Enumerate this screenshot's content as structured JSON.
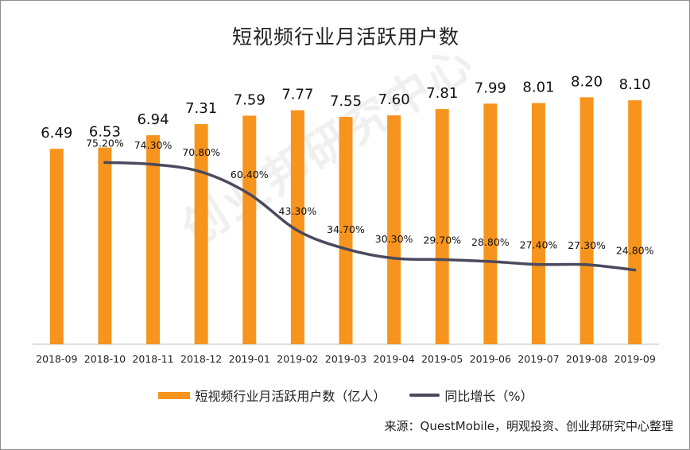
{
  "chart_data": {
    "type": "bar",
    "title": "短视频行业月活跃用户数",
    "categories": [
      "2018-09",
      "2018-10",
      "2018-11",
      "2018-12",
      "2019-01",
      "2019-02",
      "2019-03",
      "2019-04",
      "2019-05",
      "2019-06",
      "2019-07",
      "2019-08",
      "2019-09"
    ],
    "series": [
      {
        "name": "短视频行业月活跃用户数（亿人）",
        "type": "bar",
        "color": "#f7941d",
        "values": [
          6.49,
          6.53,
          6.94,
          7.31,
          7.59,
          7.77,
          7.55,
          7.6,
          7.81,
          7.99,
          8.01,
          8.2,
          8.1
        ],
        "labels": [
          "6.49",
          "6.53",
          "6.94",
          "7.31",
          "7.59",
          "7.77",
          "7.55",
          "7.60",
          "7.81",
          "7.99",
          "8.01",
          "8.20",
          "8.10"
        ]
      },
      {
        "name": "同比增长（%）",
        "type": "line",
        "color": "#4a4a5e",
        "values": [
          null,
          75.2,
          74.3,
          70.8,
          60.4,
          43.3,
          34.7,
          30.3,
          29.7,
          28.8,
          27.4,
          27.3,
          24.8
        ],
        "labels": [
          "",
          "75.20%",
          "74.30%",
          "70.80%",
          "60.40%",
          "43.30%",
          "34.70%",
          "30.30%",
          "29.70%",
          "28.80%",
          "27.40%",
          "27.30%",
          "24.80%"
        ]
      }
    ],
    "ylim_bar": [
      0,
      8.5
    ],
    "ylim_line": [
      -10,
      110
    ],
    "grid": false,
    "legend": "bottom"
  },
  "source": "来源：QuestMobile，明观投资、创业邦研究中心整理",
  "watermark": "创业邦研究中心"
}
